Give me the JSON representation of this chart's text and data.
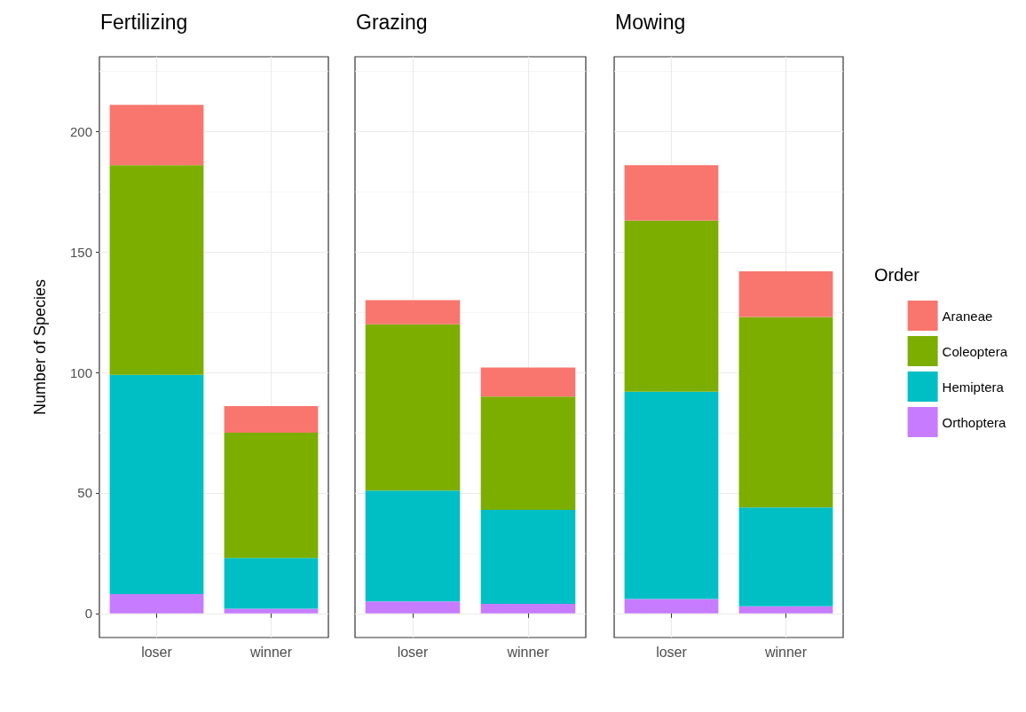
{
  "chart_data": [
    {
      "type": "bar",
      "title": "Fertilizing",
      "ylabel": "Number of Species",
      "categories": [
        "loser",
        "winner"
      ],
      "stacked": true,
      "ylim": [
        -10,
        231
      ],
      "yticks": [
        0,
        50,
        100,
        150,
        200
      ],
      "grid": true,
      "legend": false,
      "series": [
        {
          "color": "#c77cff",
          "values": [
            8,
            2
          ]
        },
        {
          "color": "#00bfc4",
          "values": [
            91,
            21
          ]
        },
        {
          "color": "#7cae00",
          "values": [
            87,
            52
          ]
        },
        {
          "color": "#f8766d",
          "values": [
            25,
            11
          ]
        }
      ]
    },
    {
      "type": "bar",
      "title": "Grazing",
      "categories": [
        "loser",
        "winner"
      ],
      "stacked": true,
      "ylim": [
        -10,
        231
      ],
      "yticks": [
        0,
        50,
        100,
        150,
        200
      ],
      "grid": true,
      "legend": false,
      "tick_labels": "x",
      "series": [
        {
          "color": "#c77cff",
          "values": [
            5,
            4
          ]
        },
        {
          "color": "#00bfc4",
          "values": [
            46,
            39
          ]
        },
        {
          "color": "#7cae00",
          "values": [
            69,
            47
          ]
        },
        {
          "color": "#f8766d",
          "values": [
            10,
            12
          ]
        }
      ]
    },
    {
      "type": "bar",
      "title": "Mowing",
      "categories": [
        "loser",
        "winner"
      ],
      "stacked": true,
      "ylim": [
        -10,
        231
      ],
      "yticks": [
        0,
        50,
        100,
        150,
        200
      ],
      "grid": true,
      "legend": "right",
      "legend_title": "Order",
      "tick_labels": "x",
      "series": [
        {
          "name": "Orthoptera",
          "color": "#c77cff",
          "values": [
            6,
            3
          ]
        },
        {
          "name": "Hemiptera",
          "color": "#00bfc4",
          "values": [
            86,
            41
          ]
        },
        {
          "name": "Coleoptera",
          "color": "#7cae00",
          "values": [
            71,
            79
          ]
        },
        {
          "name": "Araneae",
          "color": "#f8766d",
          "values": [
            23,
            19
          ]
        }
      ]
    }
  ]
}
